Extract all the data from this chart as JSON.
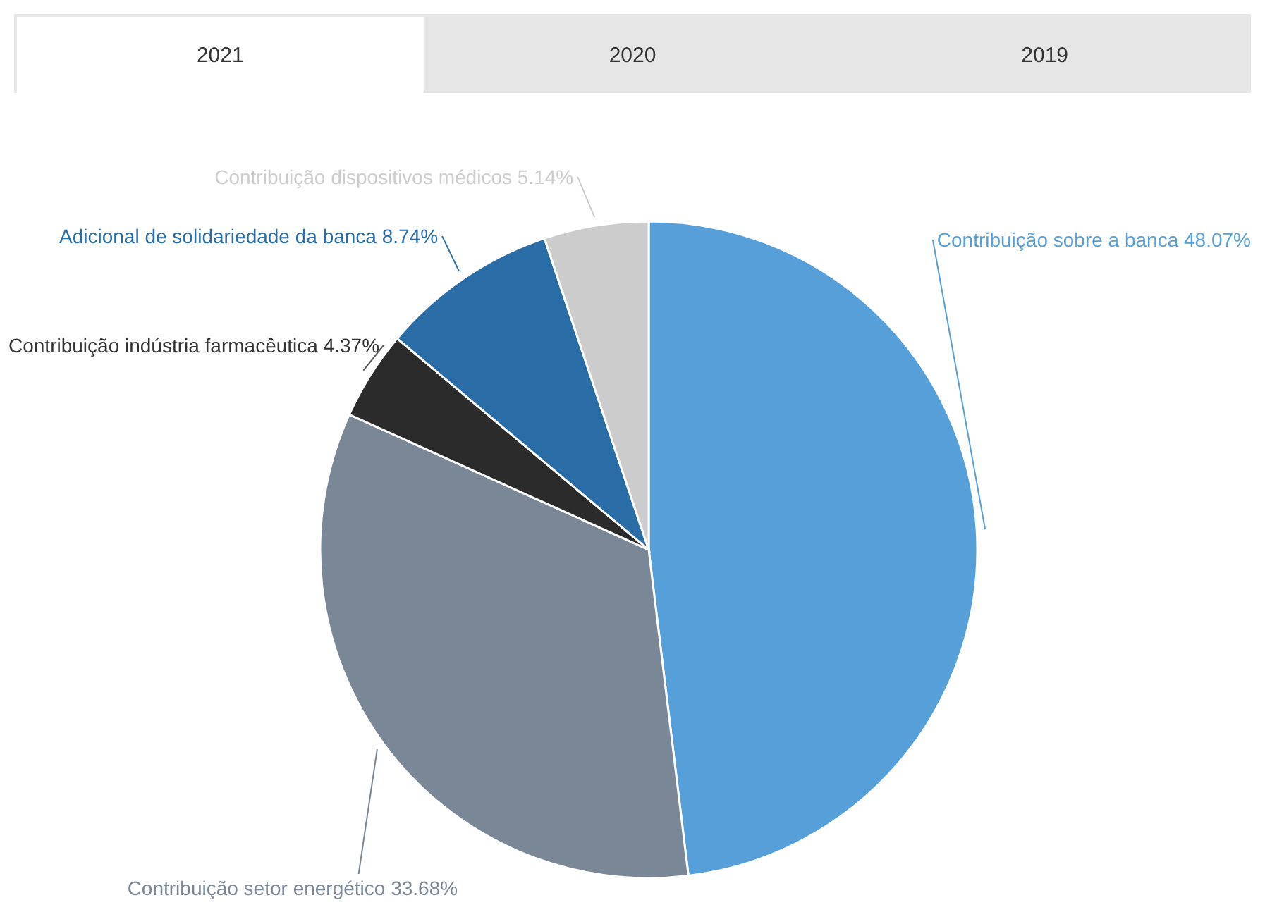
{
  "chart_data": {
    "type": "pie",
    "annotations": [
      "2021",
      "2020",
      "2019"
    ],
    "categories": [
      "Contribuição sobre a banca",
      "Contribuição setor energético",
      "Contribuição indústria farmacêutica",
      "Adicional de solidariedade da banca",
      "Contribuição dispositivos médicos"
    ],
    "values": [
      48.07,
      33.68,
      4.37,
      8.74,
      5.14
    ],
    "colors": [
      "#569fd9",
      "#7a8796",
      "#2b2b2b",
      "#2a6da6",
      "#cccccc"
    ],
    "value_labels": [
      "48.07%",
      "33.68%",
      "4.37%",
      "8.74%",
      "5.14%"
    ]
  }
}
